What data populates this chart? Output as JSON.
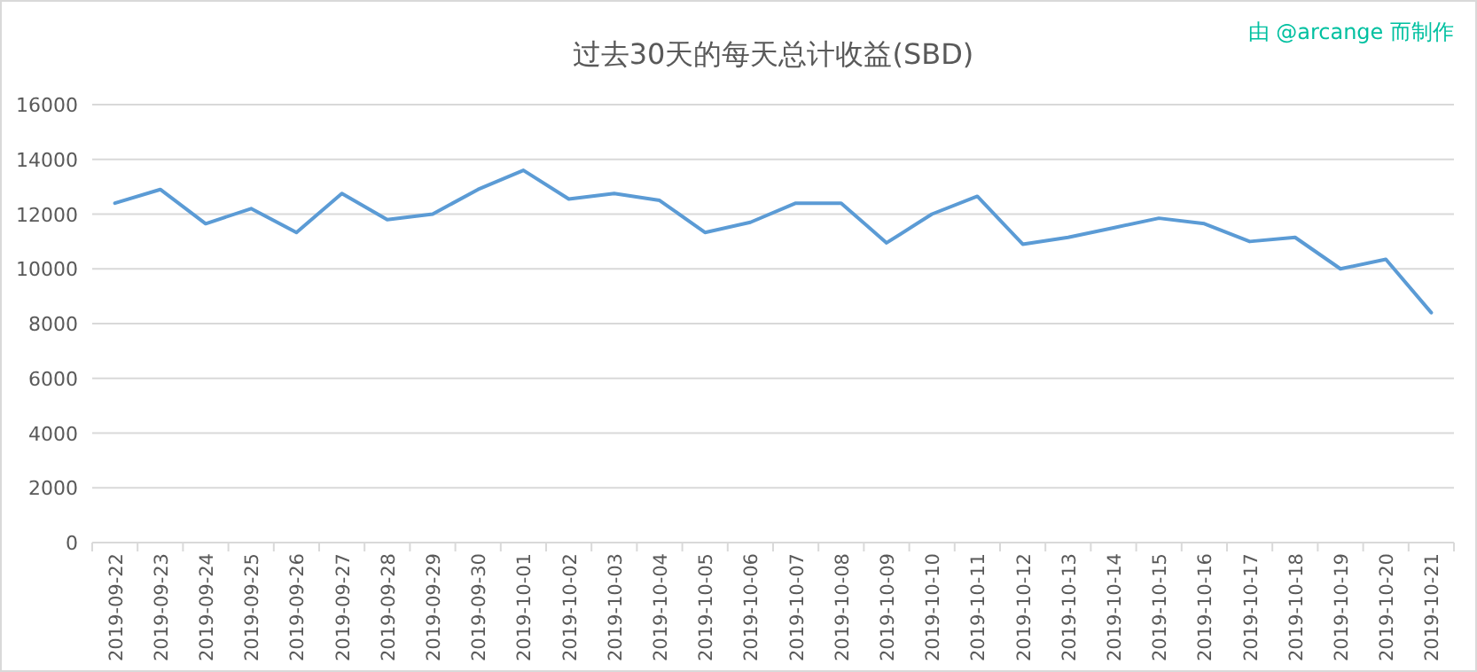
{
  "chart_data": {
    "type": "line",
    "title": "过去30天的每天总计收益(SBD)",
    "annotations": [
      "由 @arcange 而制作"
    ],
    "categories": [
      "2019-09-22",
      "2019-09-23",
      "2019-09-24",
      "2019-09-25",
      "2019-09-26",
      "2019-09-27",
      "2019-09-28",
      "2019-09-29",
      "2019-09-30",
      "2019-10-01",
      "2019-10-02",
      "2019-10-03",
      "2019-10-04",
      "2019-10-05",
      "2019-10-06",
      "2019-10-07",
      "2019-10-08",
      "2019-10-09",
      "2019-10-10",
      "2019-10-11",
      "2019-10-12",
      "2019-10-13",
      "2019-10-14",
      "2019-10-15",
      "2019-10-16",
      "2019-10-17",
      "2019-10-18",
      "2019-10-19",
      "2019-10-20",
      "2019-10-21"
    ],
    "series": [
      {
        "color": "#5b9bd5",
        "values": [
          12400,
          12900,
          11650,
          12200,
          11330,
          12750,
          11800,
          12000,
          12900,
          13600,
          12550,
          12750,
          12500,
          11330,
          11700,
          12400,
          12400,
          10950,
          12000,
          12650,
          10900,
          11150,
          11500,
          11850,
          11650,
          11000,
          11150,
          10000,
          10350,
          8400
        ]
      }
    ],
    "ylim": [
      0,
      16000
    ],
    "yticks": [
      0,
      2000,
      4000,
      6000,
      8000,
      10000,
      12000,
      14000,
      16000
    ],
    "grid": "y",
    "marker": "none",
    "line_style": "solid"
  }
}
